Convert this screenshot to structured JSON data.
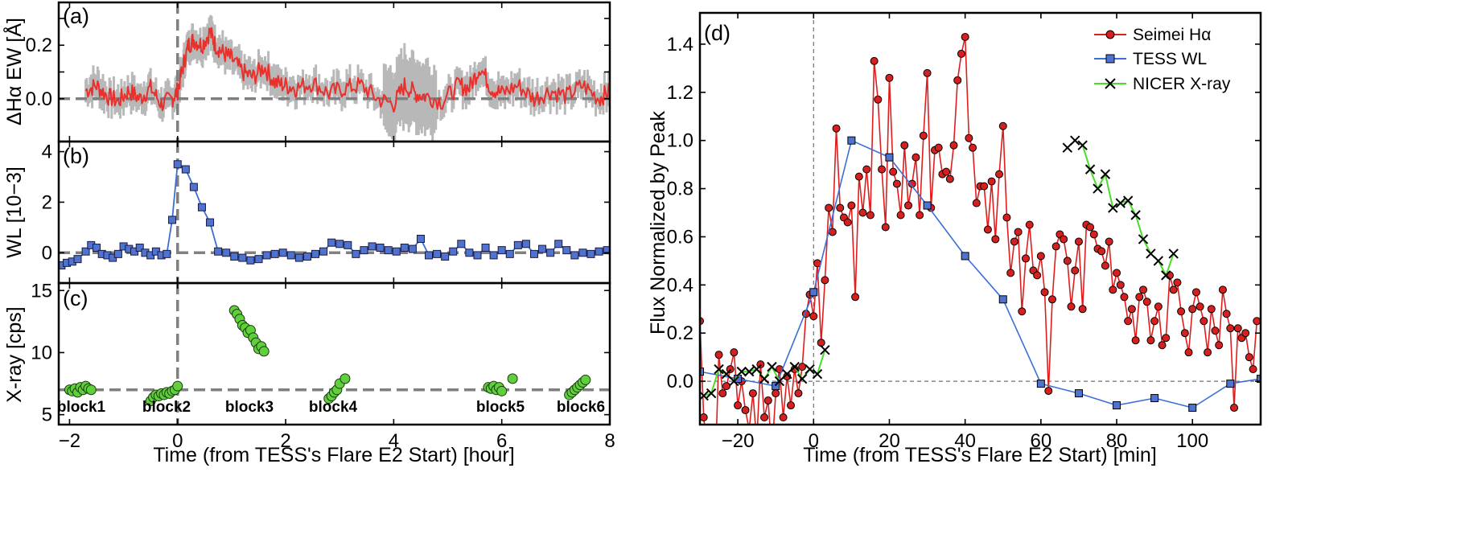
{
  "chart_data": [
    {
      "type": "line",
      "panel": "(a)",
      "ylabel": "ΔHα EW [Å]",
      "xlim": [
        -2.2,
        8
      ],
      "ylim": [
        -0.16,
        0.36
      ],
      "yticks": [
        0.0,
        0.1,
        0.2,
        0.3
      ],
      "ytick_labels": [
        "0.0",
        "",
        "0.2",
        ""
      ],
      "series": [
        {
          "name": "ΔHα EW",
          "color": "#e8302c",
          "error_color": "#b8b8b8",
          "x": [
            -1.7,
            -1.5,
            -1.3,
            -1.1,
            -0.9,
            -0.7,
            -0.5,
            -0.3,
            -0.1,
            0.0,
            0.1,
            0.2,
            0.3,
            0.45,
            0.6,
            0.7,
            0.85,
            1.0,
            1.2,
            1.4,
            1.6,
            1.8,
            2.0,
            2.2,
            2.5,
            2.8,
            3.1,
            3.4,
            3.7,
            4.0,
            4.2,
            4.4,
            4.6,
            4.9,
            5.2,
            5.4,
            5.6,
            5.8,
            6.0,
            6.3,
            6.6,
            6.9,
            7.2,
            7.5,
            7.8,
            8.0
          ],
          "y": [
            0.03,
            0.05,
            0.01,
            -0.01,
            0.03,
            0.0,
            0.04,
            -0.02,
            0.0,
            0.03,
            0.12,
            0.2,
            0.22,
            0.2,
            0.25,
            0.2,
            0.17,
            0.15,
            0.1,
            0.08,
            0.12,
            0.06,
            0.05,
            0.04,
            0.06,
            0.02,
            0.04,
            0.05,
            0.0,
            -0.02,
            0.05,
            0.02,
            0.01,
            -0.01,
            0.05,
            0.04,
            0.12,
            0.04,
            0.02,
            0.05,
            0.0,
            0.03,
            0.01,
            0.05,
            0.0,
            0.03
          ]
        }
      ],
      "hline": 0,
      "vline": 0
    },
    {
      "type": "line",
      "panel": "(b)",
      "ylabel": "WL [10−3]",
      "xlim": [
        -2.2,
        8
      ],
      "ylim": [
        -1.2,
        4.4
      ],
      "yticks": [
        0,
        2,
        4
      ],
      "ytick_labels": [
        "0",
        "2",
        "4"
      ],
      "series": [
        {
          "name": "TESS WL",
          "color": "#3a6fd8",
          "marker": "square",
          "marker_color": "#4f73cf",
          "x": [
            -2.15,
            -2.05,
            -1.95,
            -1.85,
            -1.7,
            -1.6,
            -1.5,
            -1.4,
            -1.3,
            -1.2,
            -1.1,
            -1.0,
            -0.9,
            -0.8,
            -0.7,
            -0.6,
            -0.5,
            -0.4,
            -0.3,
            -0.2,
            -0.1,
            0.0,
            0.15,
            0.3,
            0.45,
            0.6,
            0.75,
            0.9,
            1.05,
            1.2,
            1.35,
            1.5,
            1.65,
            1.8,
            1.95,
            2.1,
            2.25,
            2.4,
            2.55,
            2.7,
            2.85,
            3.0,
            3.15,
            3.3,
            3.45,
            3.6,
            3.75,
            3.9,
            4.05,
            4.2,
            4.35,
            4.5,
            4.65,
            4.8,
            4.95,
            5.1,
            5.25,
            5.4,
            5.55,
            5.7,
            5.85,
            6.0,
            6.15,
            6.3,
            6.45,
            6.6,
            6.75,
            6.9,
            7.05,
            7.2,
            7.35,
            7.5,
            7.65,
            7.8,
            7.95
          ],
          "y": [
            -0.5,
            -0.4,
            -0.35,
            -0.25,
            0.05,
            0.3,
            0.2,
            -0.05,
            -0.1,
            -0.2,
            -0.05,
            0.25,
            0.15,
            0.05,
            0.2,
            0.0,
            -0.1,
            0.05,
            -0.1,
            -0.05,
            1.3,
            3.5,
            3.3,
            2.6,
            1.8,
            1.2,
            0.05,
            0.0,
            -0.15,
            -0.2,
            -0.3,
            -0.25,
            -0.1,
            -0.05,
            0.0,
            -0.1,
            -0.2,
            -0.15,
            -0.05,
            0.05,
            0.4,
            0.35,
            0.3,
            -0.05,
            0.1,
            0.25,
            0.2,
            0.1,
            0.05,
            0.2,
            0.15,
            0.55,
            -0.1,
            -0.05,
            -0.15,
            0.05,
            0.35,
            0.0,
            -0.1,
            0.2,
            -0.1,
            0.1,
            -0.05,
            0.3,
            0.35,
            -0.05,
            0.15,
            0.0,
            0.35,
            0.1,
            -0.1,
            0.0,
            -0.05,
            0.05,
            0.1
          ]
        }
      ],
      "hline": 0,
      "vline": 0
    },
    {
      "type": "scatter",
      "panel": "(c)",
      "ylabel": "X-ray [cps]",
      "xlabel": "Time (from TESS's Flare E2 Start) [hour]",
      "xlim": [
        -2.2,
        8
      ],
      "ylim": [
        4.2,
        15.6
      ],
      "yticks": [
        5,
        10,
        15
      ],
      "ytick_labels": [
        "5",
        "10",
        "15"
      ],
      "xticks": [
        -2,
        0,
        2,
        4,
        6,
        8
      ],
      "xtick_labels": [
        "−2",
        "0",
        "2",
        "4",
        "6",
        "8"
      ],
      "hline": 7,
      "vline": 0,
      "series": [
        {
          "name": "NICER X-ray",
          "color": "#5fcf3c",
          "marker": "circle",
          "x": [
            -2.0,
            -1.95,
            -1.9,
            -1.85,
            -1.8,
            -1.75,
            -1.7,
            -1.65,
            -1.6,
            -0.5,
            -0.45,
            -0.4,
            -0.35,
            -0.3,
            -0.25,
            -0.2,
            -0.15,
            -0.1,
            -0.05,
            0.0,
            1.05,
            1.1,
            1.15,
            1.2,
            1.25,
            1.3,
            1.35,
            1.4,
            1.45,
            1.5,
            1.55,
            1.6,
            2.8,
            2.85,
            2.9,
            2.95,
            3.0,
            3.1,
            5.75,
            5.8,
            5.85,
            5.9,
            5.95,
            6.0,
            6.2,
            7.25,
            7.3,
            7.35,
            7.4,
            7.45,
            7.5,
            7.55
          ],
          "y": [
            7.0,
            6.9,
            7.1,
            6.8,
            7.2,
            7.0,
            7.3,
            7.1,
            7.0,
            6.1,
            6.4,
            6.6,
            6.5,
            6.7,
            6.6,
            6.8,
            6.7,
            6.9,
            7.0,
            7.3,
            13.4,
            13.1,
            12.7,
            12.2,
            12.0,
            11.6,
            11.8,
            11.2,
            10.8,
            10.3,
            10.5,
            10.1,
            6.3,
            6.5,
            6.8,
            7.0,
            7.5,
            7.9,
            7.2,
            7.1,
            7.3,
            7.0,
            7.2,
            6.9,
            7.9,
            6.6,
            6.8,
            7.0,
            7.2,
            7.4,
            7.6,
            7.8
          ]
        }
      ],
      "annotations": [
        "block1",
        "block2",
        "block3",
        "block4",
        "block5",
        "block6"
      ]
    },
    {
      "type": "line",
      "panel": "(d)",
      "xlabel": "Time (from TESS's Flare E2 Start) [min]",
      "ylabel": "Flux Normalized by Peak",
      "xlim": [
        -30,
        118
      ],
      "ylim": [
        -0.18,
        1.53
      ],
      "xticks": [
        -20,
        0,
        20,
        40,
        60,
        80,
        100
      ],
      "xtick_labels": [
        "−20",
        "0",
        "20",
        "40",
        "60",
        "80",
        "100"
      ],
      "yticks": [
        0.0,
        0.2,
        0.4,
        0.6,
        0.8,
        1.0,
        1.2,
        1.4
      ],
      "ytick_labels": [
        "0.0",
        "0.2",
        "0.4",
        "0.6",
        "0.8",
        "1.0",
        "1.2",
        "1.4"
      ],
      "hline": 0,
      "vline": 0,
      "legend": "top-right",
      "series": [
        {
          "name": "Seimei Hα",
          "color": "#e01d1d",
          "marker": "circle",
          "x": [
            -30,
            -29,
            -28,
            -26,
            -25,
            -24,
            -23,
            -22,
            -21,
            -20,
            -19,
            -18,
            -17,
            -16,
            -15,
            -14,
            -13,
            -12,
            -11,
            -10,
            -9,
            -8,
            -7,
            -6,
            -5,
            -4,
            -3,
            -2,
            -1,
            0,
            1,
            2,
            3,
            4,
            5,
            6,
            7,
            8,
            9,
            10,
            11,
            12,
            13,
            14,
            15,
            16,
            17,
            18,
            19,
            20,
            21,
            22,
            23,
            24,
            25,
            26,
            27,
            28,
            29,
            30,
            31,
            32,
            33,
            34,
            35,
            36,
            37,
            38,
            39,
            40,
            41,
            42,
            43,
            44,
            45,
            46,
            47,
            48,
            49,
            50,
            51,
            52,
            53,
            54,
            55,
            56,
            57,
            58,
            59,
            60,
            61,
            62,
            63,
            64,
            65,
            66,
            67,
            68,
            69,
            70,
            71,
            72,
            73,
            74,
            75,
            76,
            77,
            78,
            79,
            80,
            81,
            82,
            83,
            84,
            85,
            86,
            87,
            88,
            89,
            90,
            91,
            92,
            93,
            94,
            95,
            96,
            97,
            98,
            99,
            100,
            101,
            102,
            103,
            104,
            105,
            106,
            107,
            108,
            109,
            110,
            111,
            112,
            113,
            114,
            115,
            116,
            117
          ],
          "y": [
            0.25,
            -0.15,
            -0.3,
            -0.4,
            0.11,
            -0.05,
            -0.02,
            0.05,
            0.12,
            -0.1,
            0.0,
            -0.12,
            -0.2,
            -0.05,
            -0.25,
            0.07,
            -0.15,
            -0.08,
            -0.3,
            -0.05,
            0.05,
            -0.15,
            0.02,
            -0.1,
            0.05,
            -0.05,
            0.06,
            0.28,
            0.36,
            0.27,
            0.49,
            0.16,
            0.42,
            0.72,
            0.62,
            1.05,
            0.72,
            0.68,
            0.66,
            0.73,
            0.35,
            0.85,
            0.7,
            0.88,
            0.69,
            1.33,
            1.17,
            0.88,
            0.64,
            1.26,
            0.87,
            0.82,
            0.69,
            0.98,
            0.73,
            0.82,
            0.93,
            0.69,
            1.02,
            1.28,
            0.72,
            0.96,
            0.97,
            0.86,
            0.87,
            0.84,
            0.98,
            1.25,
            1.36,
            1.43,
            1.01,
            0.97,
            0.74,
            0.81,
            0.81,
            0.63,
            0.83,
            0.59,
            0.86,
            1.06,
            0.68,
            0.45,
            0.58,
            0.62,
            0.29,
            0.51,
            0.65,
            0.46,
            0.44,
            0.52,
            0.37,
            -0.04,
            0.34,
            0.56,
            0.61,
            0.59,
            0.5,
            0.31,
            0.46,
            0.58,
            0.3,
            0.65,
            0.64,
            0.61,
            0.55,
            0.54,
            0.48,
            0.58,
            0.38,
            0.45,
            0.4,
            0.35,
            0.25,
            0.3,
            0.17,
            0.35,
            0.38,
            0.33,
            0.17,
            0.25,
            0.31,
            0.15,
            0.18,
            0.44,
            0.38,
            0.41,
            0.29,
            0.2,
            0.12,
            0.3,
            0.37,
            0.31,
            0.25,
            0.12,
            0.3,
            0.21,
            0.15,
            0.38,
            0.28,
            0.22,
            -0.11,
            0.22,
            0.18,
            0.2,
            0.1,
            0.05,
            0.25
          ]
        },
        {
          "name": "TESS WL",
          "color": "#3a6fd8",
          "marker": "square",
          "x": [
            -30,
            -20,
            -10,
            0,
            10,
            20,
            30,
            40,
            50,
            60,
            70,
            80,
            90,
            100,
            110,
            118
          ],
          "y": [
            0.04,
            0.01,
            -0.02,
            0.37,
            1.0,
            0.93,
            0.73,
            0.52,
            0.34,
            -0.01,
            -0.05,
            -0.1,
            -0.07,
            -0.11,
            -0.01,
            0.01
          ]
        },
        {
          "name": "NICER X-ray",
          "color": "#4bdc2a",
          "marker": "x",
          "x": [
            -29,
            -27,
            -25,
            -23,
            -21,
            -19,
            -17,
            -15,
            -13,
            -11,
            -9,
            -7,
            -5,
            -3,
            -1,
            1,
            3,
            67,
            69,
            71,
            73,
            75,
            77,
            79,
            81,
            83,
            85,
            87,
            89,
            91,
            93,
            95
          ],
          "y": [
            -0.06,
            -0.05,
            0.05,
            0.03,
            0.0,
            0.04,
            0.04,
            0.05,
            0.01,
            0.06,
            0.0,
            0.03,
            0.06,
            0.01,
            0.05,
            0.03,
            0.13,
            0.97,
            1.0,
            0.98,
            0.88,
            0.8,
            0.86,
            0.72,
            0.74,
            0.75,
            0.69,
            0.59,
            0.53,
            0.5,
            0.44,
            0.53
          ]
        }
      ]
    }
  ]
}
